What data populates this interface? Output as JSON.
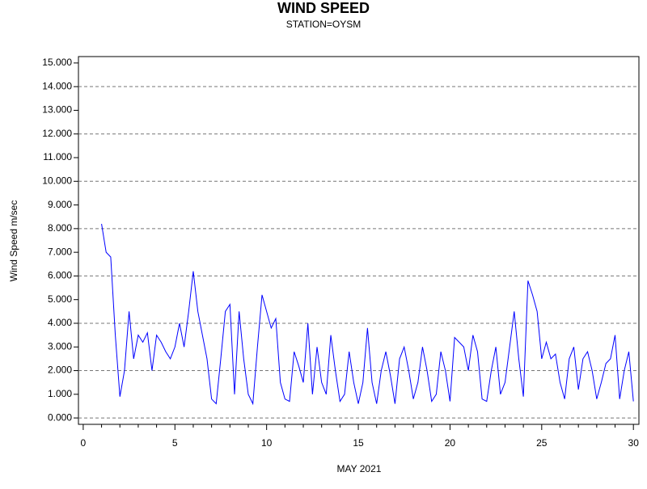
{
  "chart_data": {
    "type": "line",
    "title": "WIND SPEED",
    "subtitle": "STATION=OYSM",
    "y_label": "Wind Speed m/sec",
    "x_label": "MAY 2021",
    "xlim": [
      -0.26,
      30.3
    ],
    "ylim": [
      -0.27,
      15.27
    ],
    "xticks": [
      0,
      5,
      10,
      15,
      20,
      25,
      30
    ],
    "xminorticks": [
      1,
      2,
      3,
      4,
      6,
      7,
      8,
      9,
      11,
      12,
      13,
      14,
      16,
      17,
      18,
      19,
      21,
      22,
      23,
      24,
      26,
      27,
      28,
      29
    ],
    "yticks": [
      {
        "value": 0,
        "label": "0.000"
      },
      {
        "value": 1,
        "label": "1.000"
      },
      {
        "value": 2,
        "label": "2.000"
      },
      {
        "value": 3,
        "label": "3.000"
      },
      {
        "value": 4,
        "label": "4.000"
      },
      {
        "value": 5,
        "label": "5.000"
      },
      {
        "value": 6,
        "label": "6.000"
      },
      {
        "value": 7,
        "label": "7.000"
      },
      {
        "value": 8,
        "label": "8.000"
      },
      {
        "value": 9,
        "label": "9.000"
      },
      {
        "value": 10,
        "label": "10.000"
      },
      {
        "value": 11,
        "label": "11.000"
      },
      {
        "value": 12,
        "label": "12.000"
      },
      {
        "value": 13,
        "label": "13.000"
      },
      {
        "value": 14,
        "label": "14.000"
      },
      {
        "value": 15,
        "label": "15.000"
      }
    ],
    "ygrid": [
      0,
      2,
      4,
      6,
      8,
      10,
      12,
      14
    ],
    "series": [
      {
        "color": "#0000ff",
        "x": [
          1,
          1.25,
          1.5,
          1.75,
          2,
          2.25,
          2.5,
          2.75,
          3,
          3.25,
          3.5,
          3.75,
          4,
          4.25,
          4.5,
          4.75,
          5,
          5.25,
          5.5,
          5.75,
          6,
          6.25,
          6.5,
          6.75,
          7,
          7.25,
          7.5,
          7.75,
          8,
          8.25,
          8.5,
          8.75,
          9,
          9.25,
          9.5,
          9.75,
          10,
          10.25,
          10.5,
          10.75,
          11,
          11.25,
          11.5,
          11.75,
          12,
          12.25,
          12.5,
          12.75,
          13,
          13.25,
          13.5,
          13.75,
          14,
          14.25,
          14.5,
          14.75,
          15,
          15.25,
          15.5,
          15.75,
          16,
          16.25,
          16.5,
          16.75,
          17,
          17.25,
          17.5,
          17.75,
          18,
          18.25,
          18.5,
          18.75,
          19,
          19.25,
          19.5,
          19.75,
          20,
          20.25,
          20.5,
          20.75,
          21,
          21.25,
          21.5,
          21.75,
          22,
          22.25,
          22.5,
          22.75,
          23,
          23.25,
          23.5,
          23.75,
          24,
          24.25,
          24.5,
          24.75,
          25,
          25.25,
          25.5,
          25.75,
          26,
          26.25,
          26.5,
          26.75,
          27,
          27.25,
          27.5,
          27.75,
          28,
          28.25,
          28.5,
          28.75,
          29,
          29.25,
          29.5,
          29.75,
          30
        ],
        "values": [
          8.2,
          7.0,
          6.8,
          3.5,
          0.9,
          2.0,
          4.5,
          2.5,
          3.5,
          3.2,
          3.6,
          2.0,
          3.5,
          3.2,
          2.8,
          2.5,
          3.0,
          4.0,
          3.0,
          4.5,
          6.2,
          4.5,
          3.5,
          2.5,
          0.8,
          0.6,
          2.5,
          4.5,
          4.8,
          1.0,
          4.5,
          2.5,
          1.0,
          0.6,
          3.0,
          5.2,
          4.5,
          3.8,
          4.2,
          1.5,
          0.8,
          0.7,
          2.8,
          2.2,
          1.5,
          4.0,
          1.0,
          3.0,
          1.5,
          1.0,
          3.5,
          2.0,
          0.7,
          1.0,
          2.8,
          1.5,
          0.6,
          1.5,
          3.8,
          1.5,
          0.6,
          2.0,
          2.8,
          1.8,
          0.6,
          2.5,
          3.0,
          2.0,
          0.8,
          1.5,
          3.0,
          2.0,
          0.7,
          1.0,
          2.8,
          2.0,
          0.7,
          3.4,
          3.2,
          3.0,
          2.0,
          3.5,
          2.8,
          0.8,
          0.7,
          2.0,
          3.0,
          1.0,
          1.5,
          3.0,
          4.5,
          2.5,
          0.9,
          5.8,
          5.2,
          4.5,
          2.5,
          3.2,
          2.5,
          2.7,
          1.5,
          0.8,
          2.5,
          3.0,
          1.2,
          2.5,
          2.8,
          2.0,
          0.8,
          1.5,
          2.3,
          2.5,
          3.5,
          0.8,
          2.0,
          2.8,
          0.7
        ]
      }
    ]
  }
}
